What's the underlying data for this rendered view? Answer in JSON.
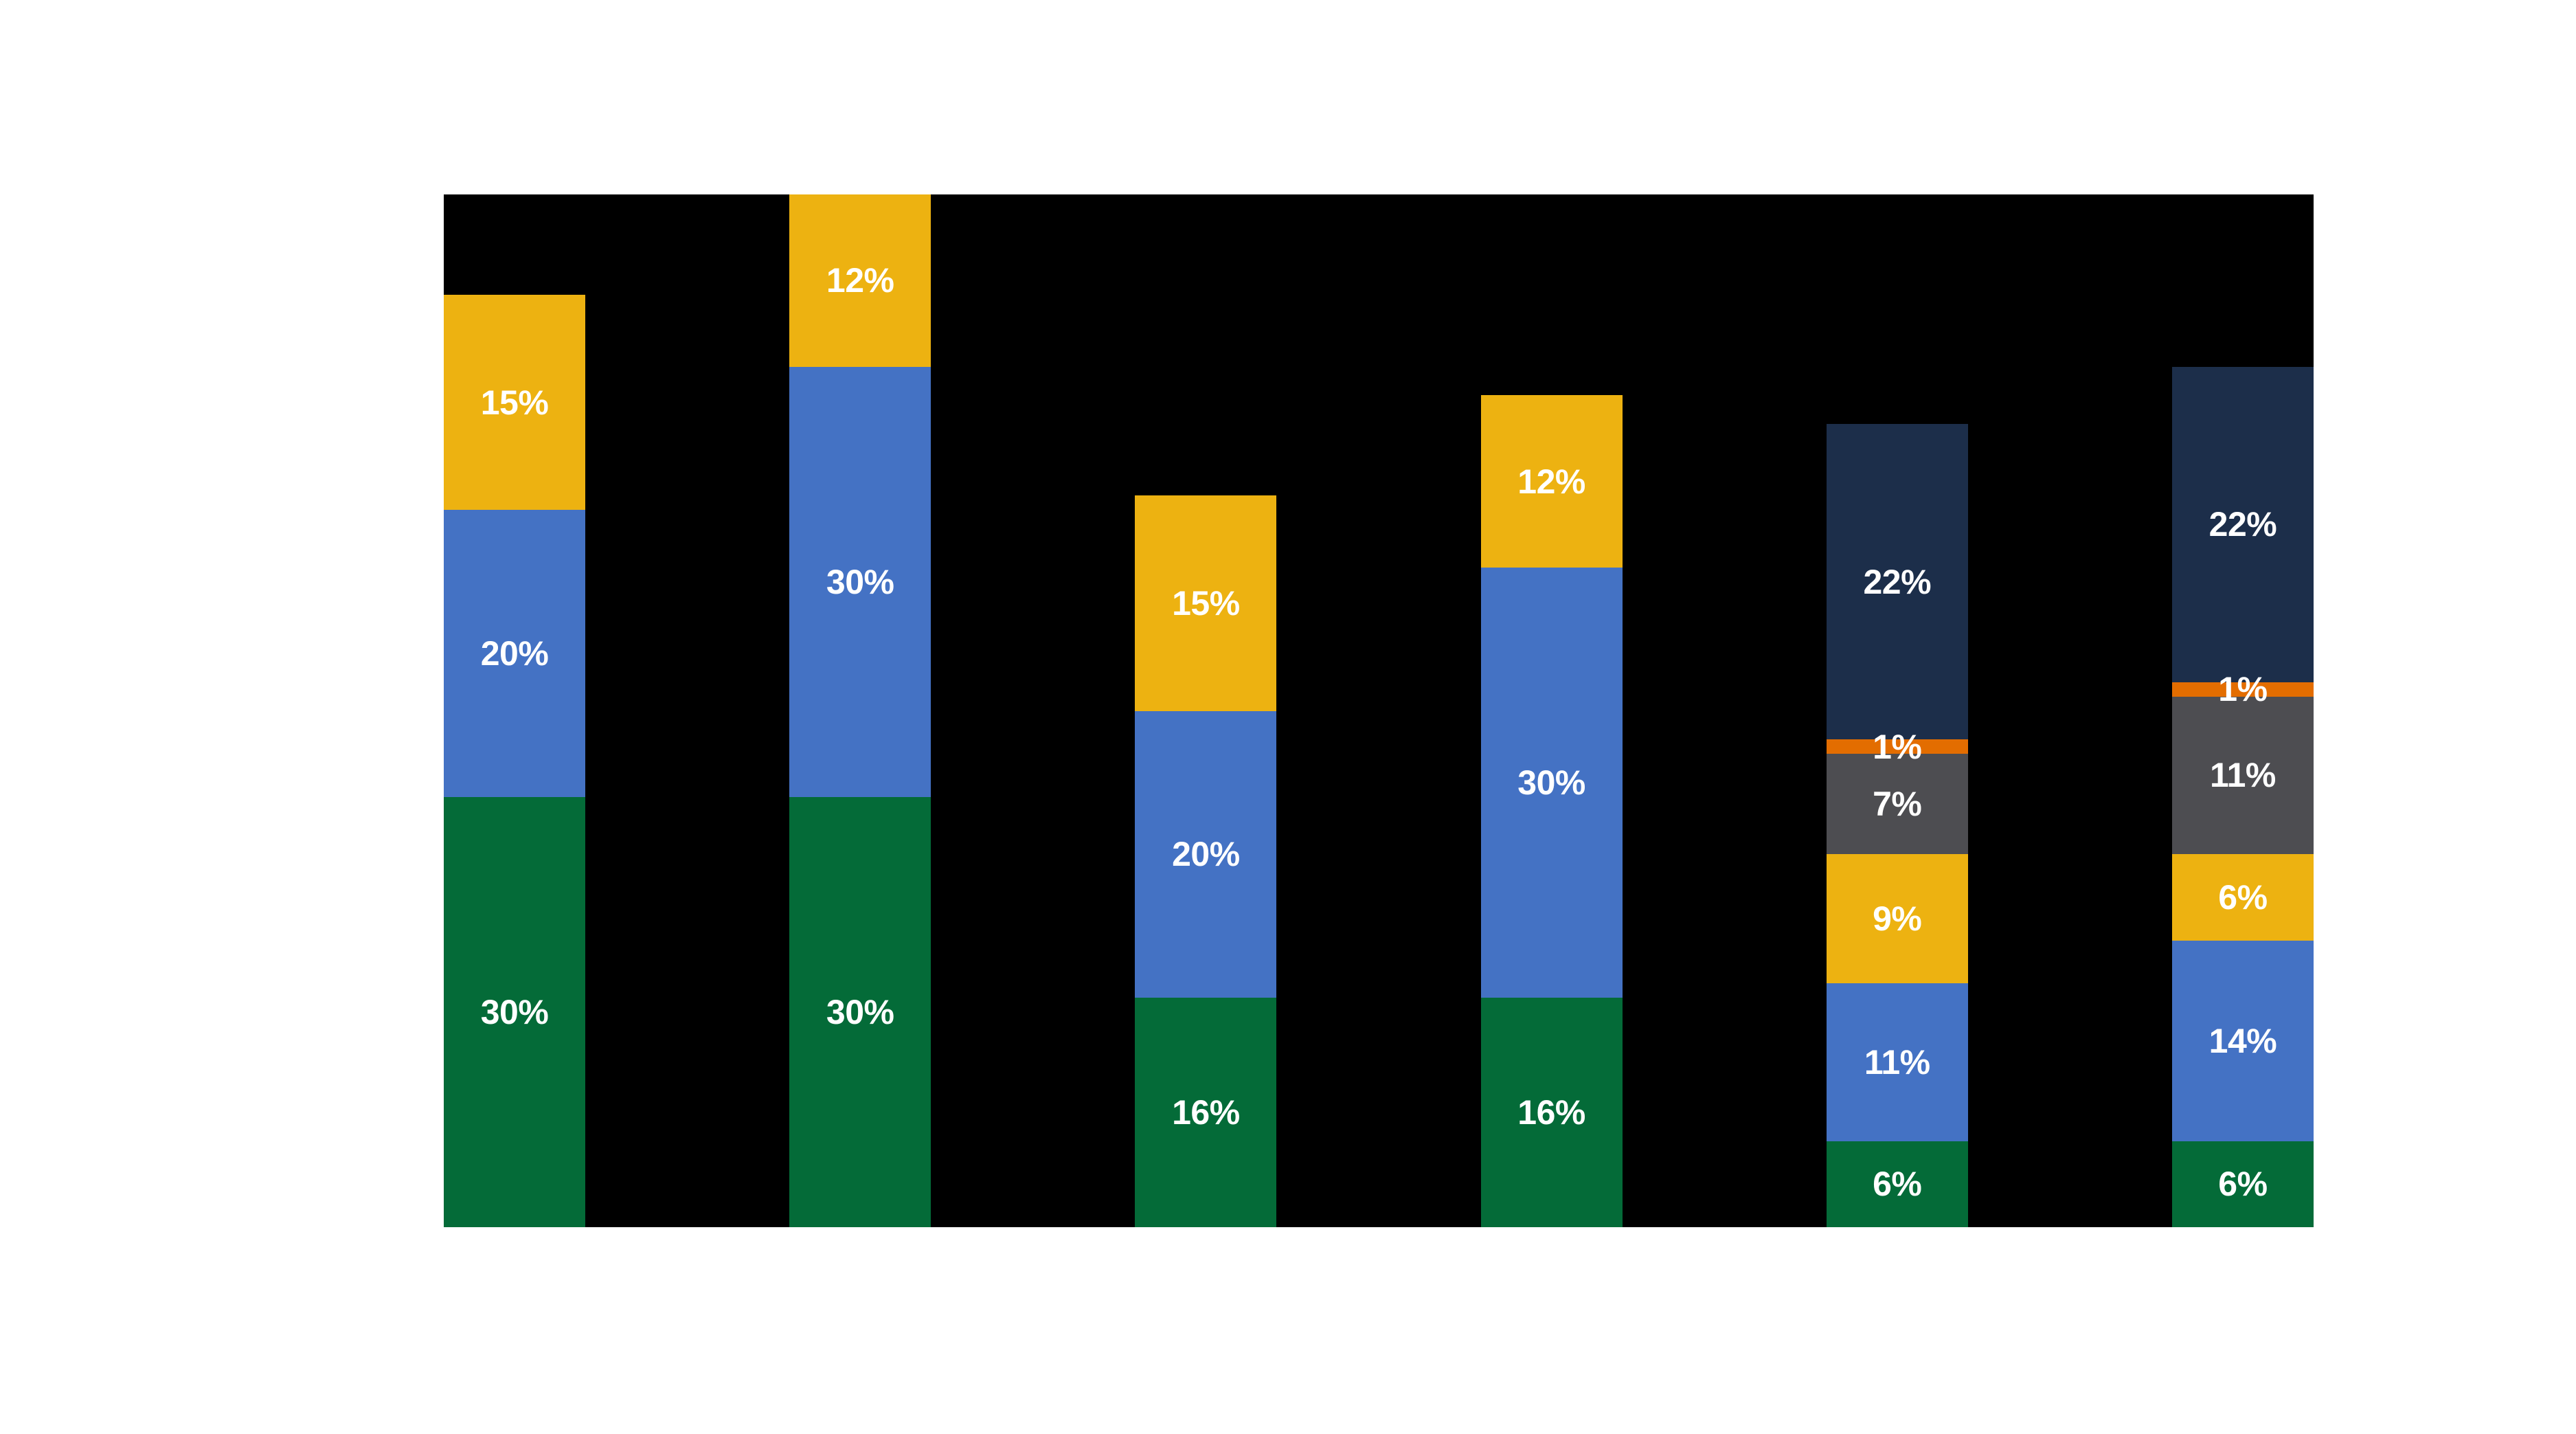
{
  "page": {
    "background": "#FFFFFF"
  },
  "chart_data": {
    "type": "bar",
    "stacked": true,
    "title": "",
    "categories": [
      "",
      "",
      "",
      "",
      "",
      ""
    ],
    "series": [
      {
        "name": "green",
        "color": "#046B38",
        "values": [
          30,
          30,
          16,
          16,
          6,
          6
        ],
        "labels": [
          "30%",
          "30%",
          "16%",
          "16%",
          "6%",
          "6%"
        ]
      },
      {
        "name": "blue",
        "color": "#4472C4",
        "values": [
          20,
          30,
          20,
          30,
          11,
          14
        ],
        "labels": [
          "20%",
          "30%",
          "20%",
          "30%",
          "11%",
          "14%"
        ]
      },
      {
        "name": "yellow",
        "color": "#EDB211",
        "values": [
          15,
          12,
          15,
          12,
          9,
          6
        ],
        "labels": [
          "15%",
          "12%",
          "15%",
          "12%",
          "9%",
          "6%"
        ]
      },
      {
        "name": "gray",
        "color": "#4D4D51",
        "values": [
          0,
          0,
          0,
          0,
          7,
          11
        ],
        "labels": [
          "",
          "",
          "",
          "",
          "7%",
          "11%"
        ]
      },
      {
        "name": "orange",
        "color": "#E36D00",
        "values": [
          0,
          0,
          0,
          0,
          1,
          1
        ],
        "labels": [
          "",
          "",
          "",
          "",
          "1%",
          "1%"
        ]
      },
      {
        "name": "navy",
        "color": "#1C2E4A",
        "values": [
          0,
          0,
          0,
          0,
          22,
          22
        ],
        "labels": [
          "",
          "",
          "",
          "",
          "22%",
          "22%"
        ]
      }
    ],
    "bar_totals": [
      65,
      72,
      51,
      58,
      56,
      60
    ],
    "ylim": [
      0,
      72
    ],
    "xlabel": "",
    "ylabel": "",
    "grid": false,
    "legend": false,
    "plot_background": "#000000",
    "data_label_color": "#FFFFFF"
  }
}
